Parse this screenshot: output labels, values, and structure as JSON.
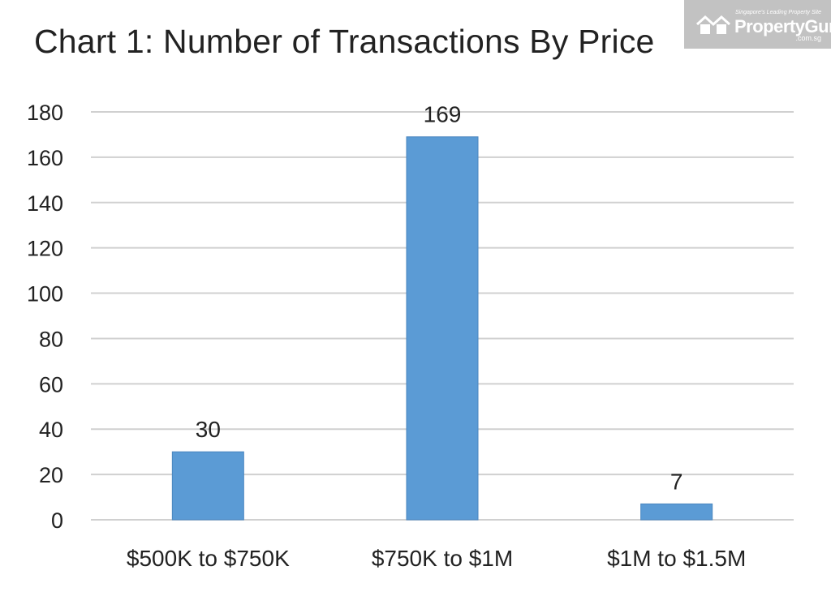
{
  "chart_data": {
    "type": "bar",
    "title": "Chart 1: Number of Transactions By Price",
    "categories": [
      "$500K to $750K",
      "$750K to $1M",
      "$1M to $1.5M"
    ],
    "values": [
      30,
      169,
      7
    ],
    "data_labels": [
      "30",
      "169",
      "7"
    ],
    "yticks": [
      0,
      20,
      40,
      60,
      80,
      100,
      120,
      140,
      160,
      180
    ],
    "ylim": [
      0,
      180
    ],
    "xlabel": "",
    "ylabel": "",
    "grid": true,
    "legend": "none",
    "bar_color": "#5b9bd5",
    "grid_color": "#d0d0d0",
    "text_color": "#222222"
  },
  "watermark": {
    "tagline": "Singapore's Leading Property Site",
    "brand": "PropertyGuru",
    "domain": ".com.sg",
    "icon": "house-logo-icon"
  }
}
